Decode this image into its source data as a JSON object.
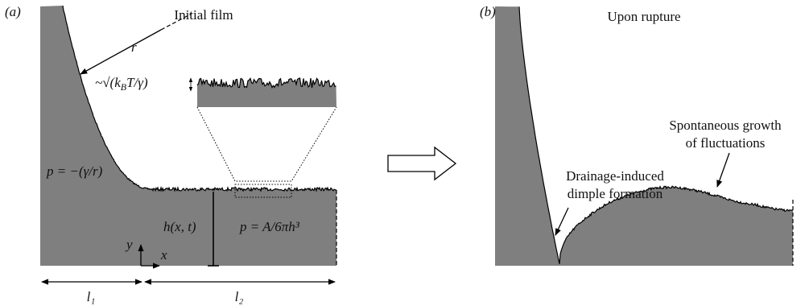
{
  "panel_a": {
    "label": "(a)",
    "title": "Initial film",
    "radius_label": "r",
    "noise_label": {
      "pre": "~√(k",
      "sub": "B",
      "post": "T/γ)"
    },
    "laplace_pressure": "p = −(γ/r)",
    "height_label": "h(x, t)",
    "disjoining_pressure": "p = A/6πh³",
    "axis_y": "y",
    "axis_x": "x",
    "length_1": "l₁",
    "length_2": "l₂"
  },
  "panel_b": {
    "label": "(b)",
    "title": "Upon rupture",
    "dimple_note": [
      "Drainage-induced",
      "dimple formation"
    ],
    "growth_note": [
      "Spontaneous growth",
      "of fluctuations"
    ]
  }
}
